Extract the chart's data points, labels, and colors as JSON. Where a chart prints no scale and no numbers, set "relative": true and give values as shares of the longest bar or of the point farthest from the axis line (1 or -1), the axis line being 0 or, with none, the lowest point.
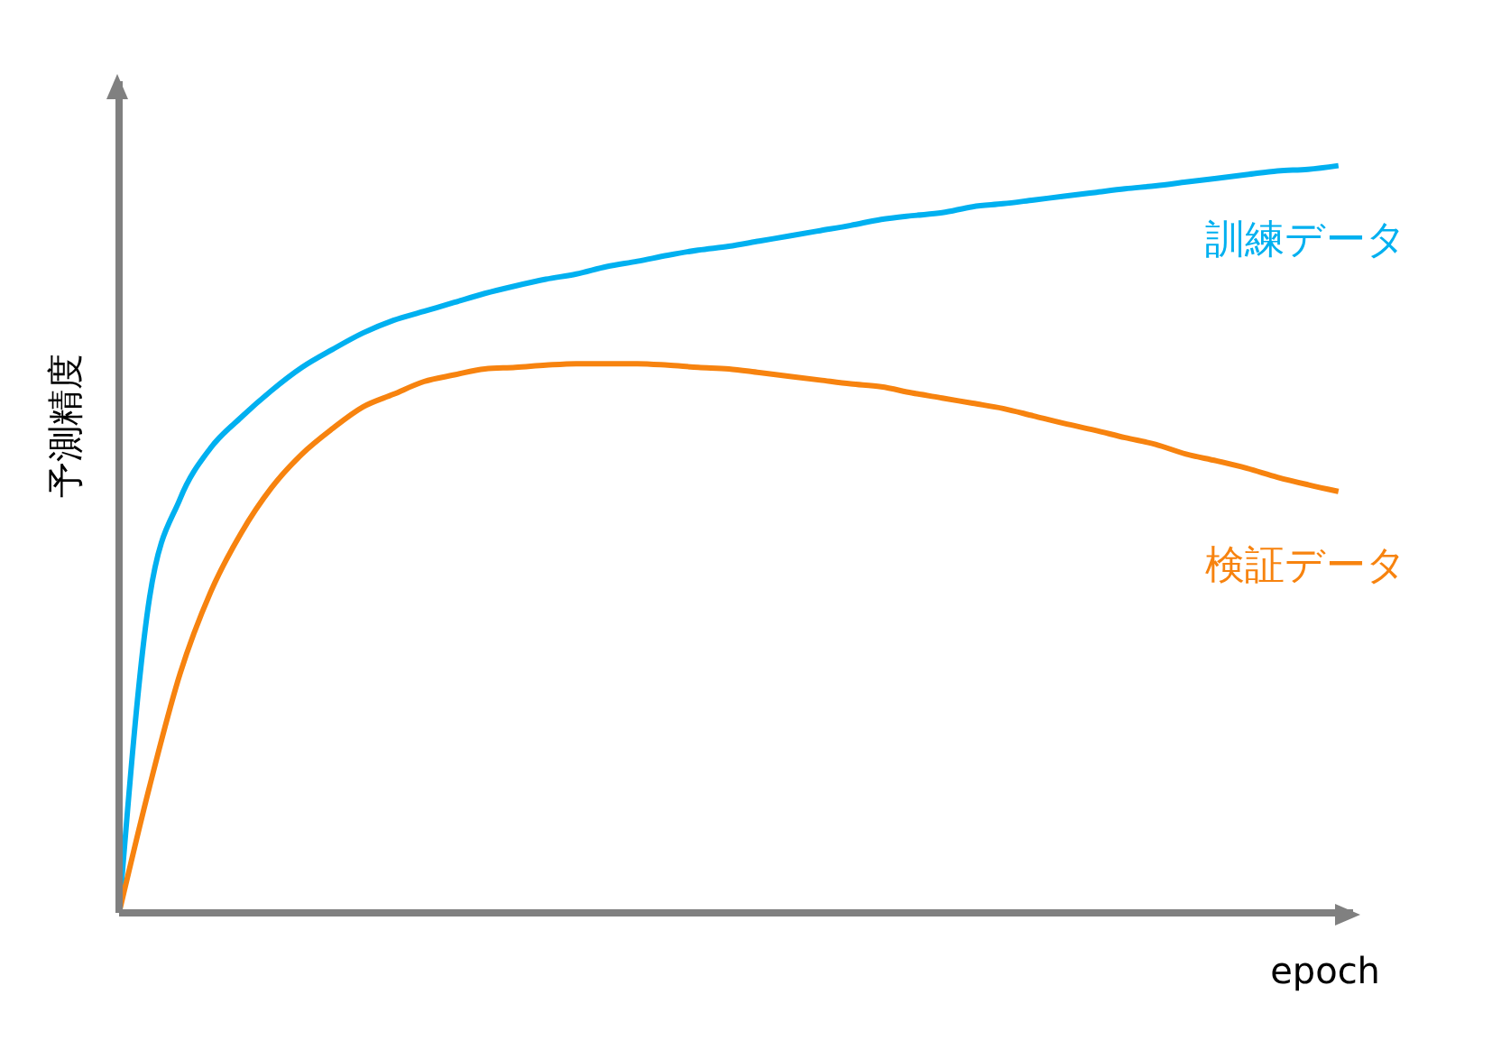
{
  "chart_data": {
    "type": "line",
    "relative": true,
    "xlabel": "epoch",
    "ylabel": "予測精度",
    "marker": "none",
    "line_style": "solid",
    "categories": [
      null,
      null,
      null,
      null,
      null,
      null,
      null,
      null,
      null,
      null,
      null,
      null,
      null,
      null,
      null,
      null,
      null,
      null,
      null,
      null,
      null,
      null,
      null,
      null,
      null,
      null,
      null,
      null,
      null,
      null,
      null,
      null,
      null,
      null,
      null,
      null,
      null,
      null,
      null,
      null,
      null
    ],
    "series": [
      {
        "name": "訓練データ",
        "color": "#00b0f0",
        "values": [
          0,
          0.422,
          0.554,
          0.622,
          0.663,
          0.699,
          0.73,
          0.754,
          0.776,
          0.793,
          0.805,
          0.817,
          0.829,
          0.839,
          0.848,
          0.855,
          0.865,
          0.872,
          0.88,
          0.887,
          0.892,
          0.899,
          0.906,
          0.913,
          0.92,
          0.928,
          0.933,
          0.937,
          0.945,
          0.949,
          0.954,
          0.959,
          0.964,
          0.969,
          0.973,
          0.978,
          0.983,
          0.988,
          0.993,
          0.995,
          1.0
        ]
      },
      {
        "name": "検証データ",
        "color": "#f7830f",
        "values": [
          0,
          0.169,
          0.32,
          0.429,
          0.508,
          0.569,
          0.614,
          0.648,
          0.677,
          0.694,
          0.711,
          0.72,
          0.728,
          0.73,
          0.733,
          0.735,
          0.735,
          0.735,
          0.733,
          0.73,
          0.728,
          0.723,
          0.718,
          0.713,
          0.708,
          0.704,
          0.696,
          0.689,
          0.682,
          0.675,
          0.665,
          0.655,
          0.646,
          0.636,
          0.627,
          0.614,
          0.605,
          0.595,
          0.583,
          0.573,
          0.564
        ]
      }
    ]
  }
}
